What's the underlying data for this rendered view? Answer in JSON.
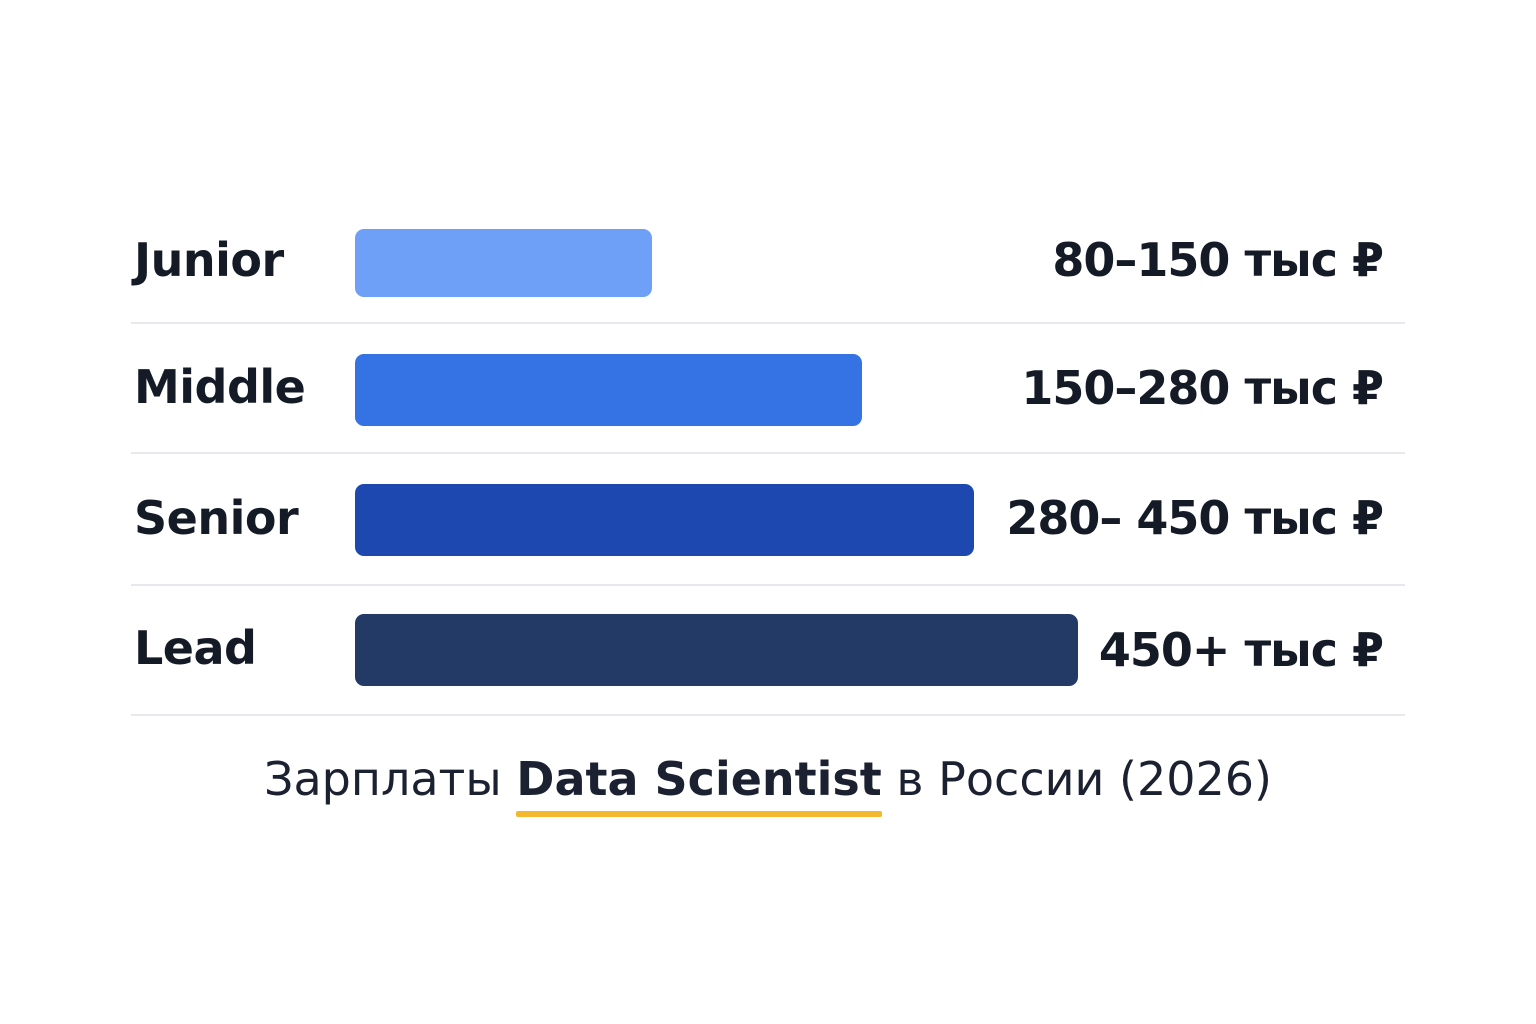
{
  "chart_data": {
    "type": "bar",
    "orientation": "horizontal",
    "categories": [
      "Junior",
      "Middle",
      "Senior",
      "Lead"
    ],
    "values": [
      80,
      150,
      280,
      450
    ],
    "value_labels": [
      "80–150 тыс ₽",
      "150–280 тыс ₽",
      "280– 450 тыс ₽",
      "450+ тыс ₽"
    ],
    "unit": "тыс ₽",
    "colors": [
      "#6ea0f7",
      "#3572e3",
      "#1c48b0",
      "#243a66"
    ],
    "grid": false,
    "legend": "none"
  },
  "caption": {
    "prefix": "Зарплаты ",
    "highlight": "Data Scientist",
    "suffix": " в России (2026)",
    "underline_color": "#f3b82d"
  }
}
